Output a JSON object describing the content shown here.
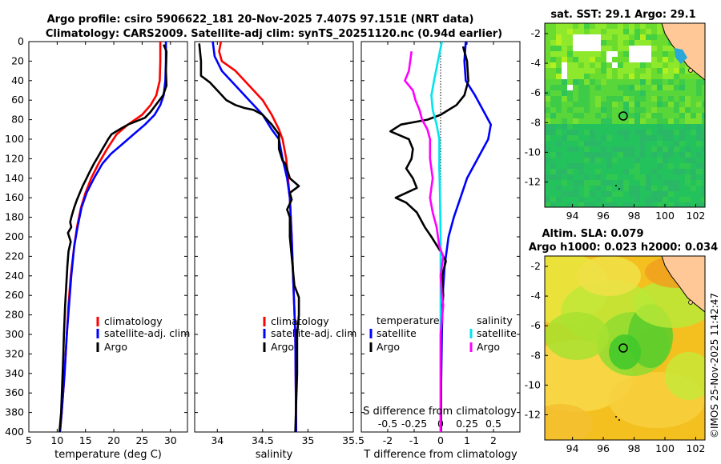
{
  "titles": {
    "line1": "Argo profile: csiro 5906622_181 20-Nov-2025 7.407S 97.151E (NRT data)",
    "line2": "Climatology: CARS2009. Satellite-adj clim: synTS_20251120.nc (0.94d earlier)"
  },
  "colors": {
    "climatology": "#ff0000",
    "satellite": "#0000ff",
    "argo": "#000000",
    "sat_diff_s": "#00e5ee",
    "clim_diff_s": "#ff00ff",
    "land": "#ffc896",
    "dot": "#000000"
  },
  "chart_data": [
    {
      "type": "line",
      "panel": "temperature",
      "xlabel": "temperature (deg C)",
      "ylabel": "",
      "xlim": [
        5,
        33
      ],
      "ylim": [
        400,
        0
      ],
      "xticks": [
        5,
        10,
        15,
        20,
        25,
        30
      ],
      "yticks": [
        0,
        20,
        40,
        60,
        80,
        100,
        120,
        140,
        160,
        180,
        200,
        220,
        240,
        260,
        280,
        300,
        320,
        340,
        360,
        380,
        400
      ],
      "legend": [
        "climatology",
        "satellite-adj. clim",
        "Argo"
      ],
      "series": [
        {
          "name": "climatology",
          "color": "#ff0000",
          "points": [
            [
              28.2,
              0
            ],
            [
              28.2,
              20
            ],
            [
              28.1,
              40
            ],
            [
              27.5,
              55
            ],
            [
              26.5,
              65
            ],
            [
              25,
              75
            ],
            [
              22.5,
              85
            ],
            [
              20.5,
              95
            ],
            [
              18.8,
              110
            ],
            [
              17.3,
              125
            ],
            [
              16,
              140
            ],
            [
              15,
              155
            ],
            [
              14.2,
              170
            ],
            [
              13.5,
              190
            ],
            [
              13,
              210
            ],
            [
              12.4,
              240
            ],
            [
              12,
              270
            ],
            [
              11.7,
              300
            ],
            [
              11.3,
              340
            ],
            [
              10.8,
              380
            ],
            [
              10.5,
              400
            ]
          ]
        },
        {
          "name": "satellite-adj. clim",
          "color": "#0000ff",
          "points": [
            [
              29.2,
              0
            ],
            [
              29.2,
              20
            ],
            [
              29.1,
              40
            ],
            [
              28.8,
              55
            ],
            [
              28.2,
              65
            ],
            [
              27.2,
              75
            ],
            [
              25.5,
              85
            ],
            [
              23.5,
              95
            ],
            [
              21.5,
              105
            ],
            [
              19.5,
              115
            ],
            [
              18,
              125
            ],
            [
              16.5,
              140
            ],
            [
              15.2,
              155
            ],
            [
              14.3,
              170
            ],
            [
              13.6,
              190
            ],
            [
              13,
              210
            ],
            [
              12.5,
              240
            ],
            [
              12.1,
              270
            ],
            [
              11.7,
              300
            ],
            [
              11.3,
              340
            ],
            [
              10.8,
              380
            ],
            [
              10.5,
              400
            ]
          ]
        },
        {
          "name": "Argo",
          "color": "#000000",
          "points": [
            [
              28.8,
              3
            ],
            [
              29.3,
              10
            ],
            [
              29.2,
              30
            ],
            [
              29.3,
              45
            ],
            [
              28.7,
              55
            ],
            [
              27.8,
              62
            ],
            [
              26.5,
              72
            ],
            [
              25.5,
              78
            ],
            [
              22.5,
              85
            ],
            [
              21,
              90
            ],
            [
              19.6,
              95
            ],
            [
              19,
              100
            ],
            [
              18.5,
              105
            ],
            [
              18,
              110
            ],
            [
              17.2,
              118
            ],
            [
              16.5,
              125
            ],
            [
              15.6,
              135
            ],
            [
              15.2,
              140
            ],
            [
              14.5,
              148
            ],
            [
              14,
              155
            ],
            [
              13.5,
              162
            ],
            [
              13,
              170
            ],
            [
              12.6,
              178
            ],
            [
              12.3,
              185
            ],
            [
              12.5,
              190
            ],
            [
              11.9,
              196
            ],
            [
              12.4,
              205
            ],
            [
              12,
              215
            ],
            [
              11.8,
              230
            ],
            [
              11.6,
              250
            ],
            [
              11.4,
              270
            ],
            [
              11.2,
              300
            ],
            [
              11.1,
              320
            ],
            [
              10.9,
              350
            ],
            [
              10.7,
              380
            ],
            [
              10.4,
              400
            ]
          ]
        }
      ]
    },
    {
      "type": "line",
      "panel": "salinity",
      "xlabel": "salinity",
      "xlim": [
        33.75,
        35.5
      ],
      "ylim": [
        400,
        0
      ],
      "xticks": [
        34,
        34.5,
        35,
        35.5
      ],
      "xticklabels": [
        "34",
        "34.5",
        "35",
        "35.5"
      ],
      "legend": [
        "climatology",
        "satellite-adj. clim",
        "Argo"
      ],
      "series": [
        {
          "name": "climatology",
          "color": "#ff0000",
          "points": [
            [
              34.04,
              0
            ],
            [
              34.02,
              10
            ],
            [
              34.05,
              20
            ],
            [
              34.2,
              30
            ],
            [
              34.35,
              45
            ],
            [
              34.5,
              60
            ],
            [
              34.6,
              75
            ],
            [
              34.68,
              90
            ],
            [
              34.72,
              100
            ],
            [
              34.76,
              120
            ],
            [
              34.78,
              140
            ],
            [
              34.8,
              160
            ],
            [
              34.82,
              200
            ],
            [
              34.84,
              250
            ],
            [
              34.86,
              300
            ],
            [
              34.87,
              400
            ]
          ]
        },
        {
          "name": "satellite-adj. clim",
          "color": "#0000ff",
          "points": [
            [
              33.95,
              0
            ],
            [
              33.97,
              15
            ],
            [
              34.05,
              30
            ],
            [
              34.2,
              45
            ],
            [
              34.35,
              60
            ],
            [
              34.5,
              75
            ],
            [
              34.6,
              90
            ],
            [
              34.68,
              100
            ],
            [
              34.72,
              120
            ],
            [
              34.77,
              140
            ],
            [
              34.8,
              160
            ],
            [
              34.82,
              200
            ],
            [
              34.84,
              250
            ],
            [
              34.86,
              300
            ],
            [
              34.87,
              400
            ]
          ]
        },
        {
          "name": "Argo",
          "color": "#000000",
          "points": [
            [
              33.8,
              2
            ],
            [
              33.82,
              20
            ],
            [
              33.82,
              35
            ],
            [
              33.92,
              42
            ],
            [
              34,
              50
            ],
            [
              34.1,
              60
            ],
            [
              34.2,
              65
            ],
            [
              34.3,
              68
            ],
            [
              34.4,
              70
            ],
            [
              34.5,
              75
            ],
            [
              34.55,
              80
            ],
            [
              34.6,
              85
            ],
            [
              34.68,
              95
            ],
            [
              34.68,
              110
            ],
            [
              34.72,
              122
            ],
            [
              34.75,
              125
            ],
            [
              34.8,
              140
            ],
            [
              34.9,
              148
            ],
            [
              34.8,
              155
            ],
            [
              34.82,
              162
            ],
            [
              34.77,
              172
            ],
            [
              34.8,
              180
            ],
            [
              34.8,
              200
            ],
            [
              34.82,
              220
            ],
            [
              34.85,
              250
            ],
            [
              34.9,
              262
            ],
            [
              34.9,
              280
            ],
            [
              34.88,
              300
            ],
            [
              34.88,
              340
            ],
            [
              34.87,
              370
            ],
            [
              34.86,
              400
            ]
          ]
        }
      ]
    },
    {
      "type": "line",
      "panel": "difference",
      "xlabel": "T difference from climatology",
      "x2label": "S difference from climatology",
      "xlim": [
        -3,
        3
      ],
      "ylim": [
        400,
        0
      ],
      "xticks": [
        -2,
        -1,
        0,
        1,
        2
      ],
      "x2ticks": [
        -0.5,
        -0.25,
        0,
        0.25,
        0.5
      ],
      "x2ticklabels": [
        "-0.5",
        "-0.25",
        "0",
        "0.25",
        "0.5"
      ],
      "legend_headers": [
        "temperature",
        "salinity"
      ],
      "legend": [
        "satellite",
        "Argo",
        "satellite",
        "Argo"
      ],
      "series": [
        {
          "name": "temperature satellite",
          "color": "#0000ff",
          "points": [
            [
              0.95,
              0
            ],
            [
              0.9,
              20
            ],
            [
              0.95,
              40
            ],
            [
              1.3,
              55
            ],
            [
              1.6,
              70
            ],
            [
              1.9,
              85
            ],
            [
              1.8,
              100
            ],
            [
              1.4,
              120
            ],
            [
              1,
              140
            ],
            [
              0.75,
              160
            ],
            [
              0.5,
              180
            ],
            [
              0.3,
              200
            ],
            [
              0.15,
              230
            ],
            [
              0.08,
              260
            ],
            [
              0.05,
              300
            ],
            [
              0.02,
              350
            ],
            [
              0.02,
              400
            ]
          ]
        },
        {
          "name": "temperature Argo",
          "color": "#000000",
          "points": [
            [
              0.85,
              5
            ],
            [
              1,
              20
            ],
            [
              1.05,
              40
            ],
            [
              0.9,
              55
            ],
            [
              0.6,
              65
            ],
            [
              0.3,
              70
            ],
            [
              0,
              75
            ],
            [
              -0.5,
              80
            ],
            [
              -1.5,
              85
            ],
            [
              -1.9,
              92
            ],
            [
              -1.2,
              100
            ],
            [
              -1.05,
              110
            ],
            [
              -1.1,
              120
            ],
            [
              -1.3,
              130
            ],
            [
              -1.05,
              140
            ],
            [
              -0.9,
              150
            ],
            [
              -1.7,
              160
            ],
            [
              -1.3,
              165
            ],
            [
              -0.9,
              175
            ],
            [
              -0.6,
              190
            ],
            [
              -0.35,
              200
            ],
            [
              0,
              215
            ],
            [
              0.2,
              225
            ],
            [
              0.05,
              240
            ],
            [
              0.1,
              260
            ],
            [
              0.05,
              280
            ],
            [
              0.02,
              300
            ],
            [
              0.02,
              400
            ]
          ]
        },
        {
          "name": "salinity satellite",
          "color": "#00e5ee",
          "points": [
            [
              0.05,
              0
            ],
            [
              -0.1,
              20
            ],
            [
              -0.25,
              40
            ],
            [
              -0.35,
              55
            ],
            [
              -0.3,
              70
            ],
            [
              -0.15,
              85
            ],
            [
              -0.05,
              100
            ],
            [
              -0.05,
              130
            ],
            [
              -0.02,
              160
            ],
            [
              0,
              200
            ],
            [
              0,
              240
            ],
            [
              0,
              280
            ],
            [
              0,
              320
            ],
            [
              0,
              400
            ]
          ]
        },
        {
          "name": "salinity Argo",
          "color": "#ff00ff",
          "points": [
            [
              -1.1,
              10
            ],
            [
              -1.2,
              30
            ],
            [
              -1.35,
              40
            ],
            [
              -1.05,
              50
            ],
            [
              -0.95,
              60
            ],
            [
              -0.8,
              70
            ],
            [
              -0.7,
              80
            ],
            [
              -0.5,
              90
            ],
            [
              -0.4,
              100
            ],
            [
              -0.4,
              120
            ],
            [
              -0.3,
              140
            ],
            [
              -0.4,
              160
            ],
            [
              -0.3,
              175
            ],
            [
              -0.15,
              190
            ],
            [
              -0.05,
              210
            ],
            [
              0.1,
              220
            ],
            [
              0,
              240
            ],
            [
              0.05,
              260
            ],
            [
              0.1,
              270
            ],
            [
              0,
              300
            ],
            [
              0,
              400
            ]
          ]
        }
      ]
    }
  ],
  "maps": {
    "sst": {
      "title": "sat. SST: 29.1 Argo: 29.1",
      "xticks": [
        "94",
        "96",
        "98",
        "100",
        "102"
      ],
      "yticks": [
        "-2",
        "-4",
        "-6",
        "-8",
        "-10",
        "-12"
      ]
    },
    "sla": {
      "title1": "Altim. SLA: 0.079",
      "title2": "Argo h1000: 0.023 h2000: 0.034",
      "xticks": [
        "94",
        "96",
        "98",
        "100",
        "102"
      ],
      "yticks": [
        "-2",
        "-4",
        "-6",
        "-8",
        "-10",
        "-12"
      ]
    }
  },
  "watermark": "©IMOS 25-Nov-2025 11:42:47"
}
